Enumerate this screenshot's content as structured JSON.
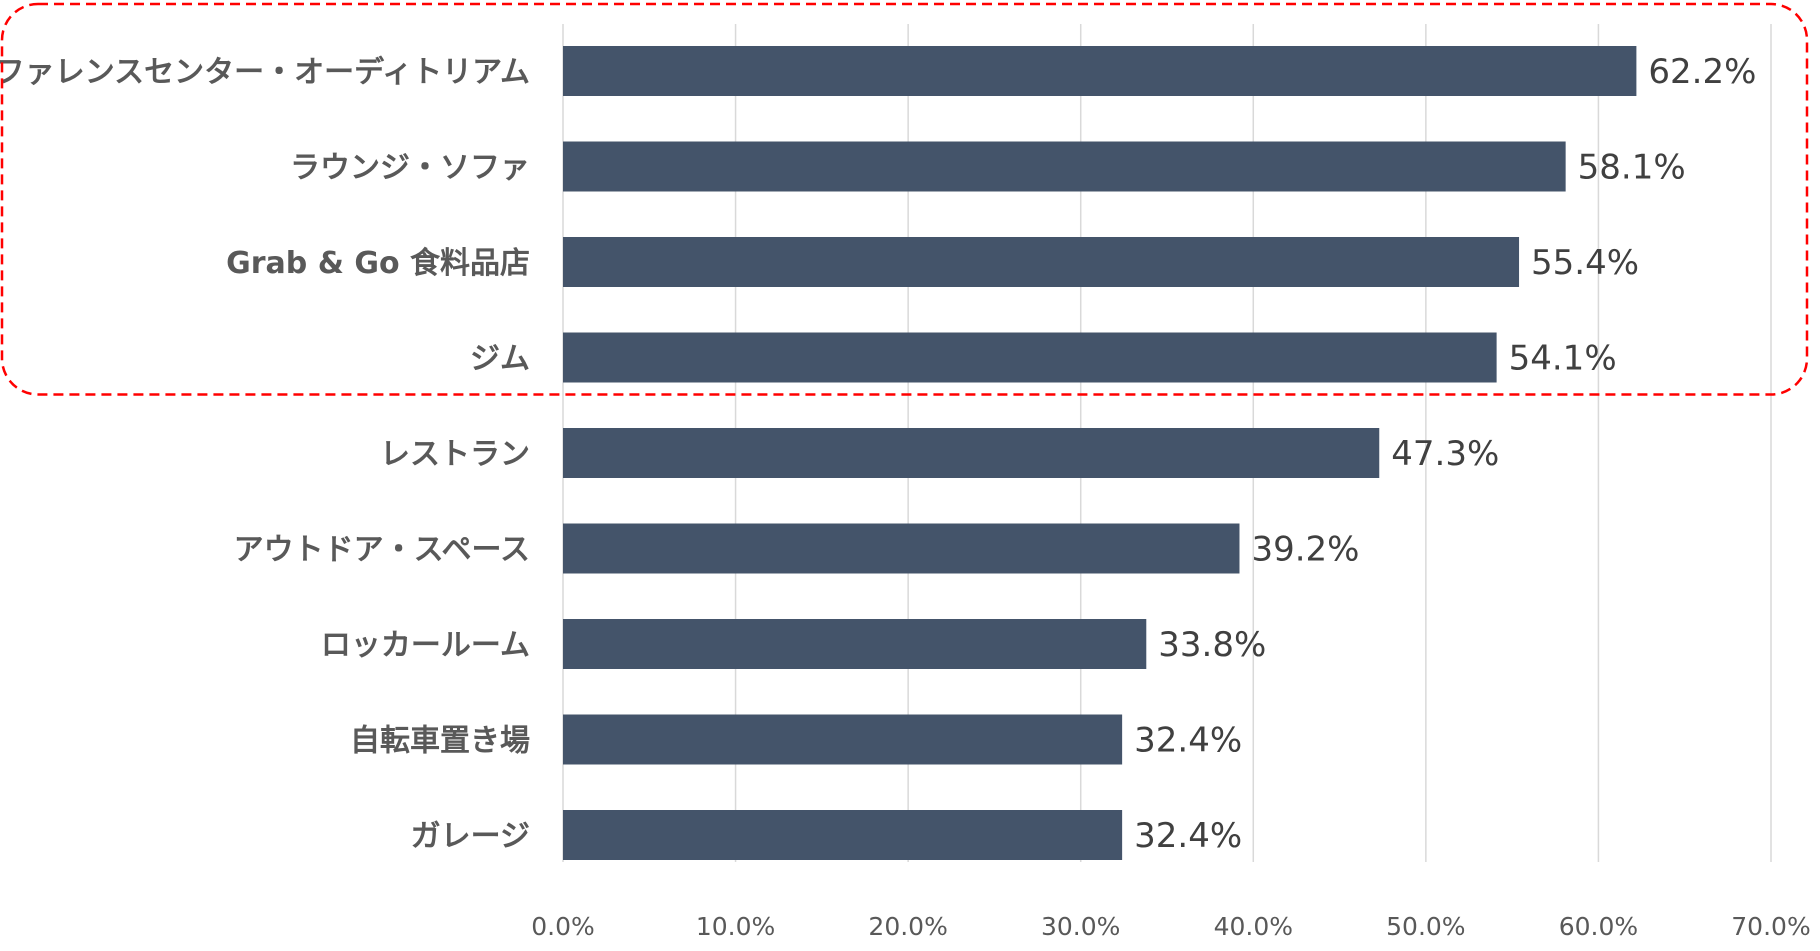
{
  "chart_data": {
    "type": "bar",
    "orientation": "horizontal",
    "title": "",
    "xlabel": "",
    "ylabel": "",
    "categories": [
      "カンファレンスセンター・オーディトリアム",
      "ラウンジ・ソファ",
      "Grab & Go 食料品店",
      "ジム",
      "レストラン",
      "アウトドア・スペース",
      "ロッカールーム",
      "自転車置き場",
      "ガレージ"
    ],
    "values": [
      62.2,
      58.1,
      55.4,
      54.1,
      47.3,
      39.2,
      33.8,
      32.4,
      32.4
    ],
    "value_labels": [
      "62.2%",
      "58.1%",
      "55.4%",
      "54.1%",
      "47.3%",
      "39.2%",
      "33.8%",
      "32.4%",
      "32.4%"
    ],
    "x_ticks": [
      "0.0%",
      "10.0%",
      "20.0%",
      "30.0%",
      "40.0%",
      "50.0%",
      "60.0%",
      "70.0%"
    ],
    "xlim": [
      0,
      70
    ],
    "grid": true,
    "legend": "none",
    "highlighted_categories": [
      0,
      1,
      2,
      3
    ],
    "colors": {
      "bar": "#44546a",
      "highlight_border": "#ff0000",
      "grid": "#d9d9d9"
    }
  }
}
